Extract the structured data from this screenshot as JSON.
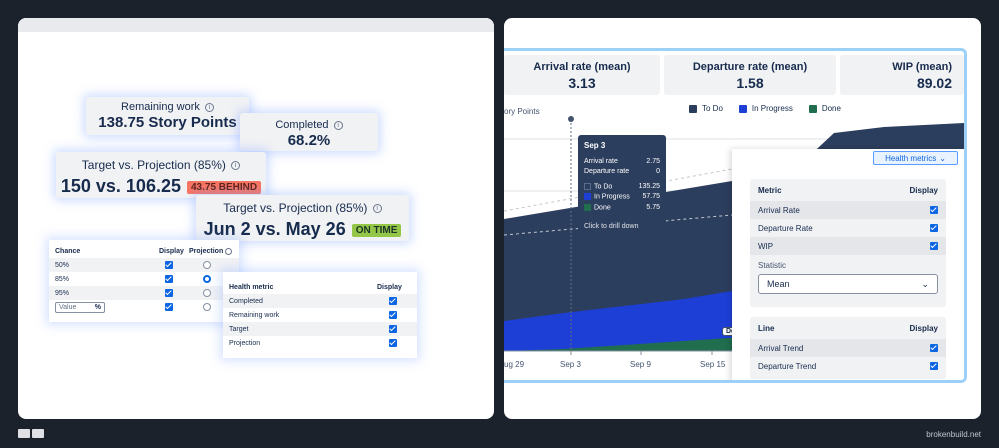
{
  "left": {
    "remaining": {
      "label": "Remaining work",
      "value": "138.75 Story Points"
    },
    "completed": {
      "label": "Completed",
      "value": "68.2%"
    },
    "target1": {
      "label": "Target vs. Projection (85%)",
      "value": "150 vs. 106.25",
      "badge": "43.75 BEHIND"
    },
    "target2": {
      "label": "Target vs. Projection (85%)",
      "value": "Jun 2 vs. May 26",
      "badge": "ON TIME"
    },
    "chance_table": {
      "headers": [
        "Chance",
        "Display",
        "Projection"
      ],
      "rows": [
        {
          "label": "50%",
          "display": true,
          "projection": false
        },
        {
          "label": "85%",
          "display": true,
          "projection": true
        },
        {
          "label": "95%",
          "display": true,
          "projection": false
        }
      ],
      "value_placeholder": "Value",
      "value_unit": "%"
    },
    "health_table": {
      "headers": [
        "Health metric",
        "Display"
      ],
      "rows": [
        "Completed",
        "Remaining work",
        "Target",
        "Projection"
      ]
    }
  },
  "right": {
    "kpis": [
      {
        "title": "Arrival rate (mean)",
        "value": "3.13"
      },
      {
        "title": "Departure rate (mean)",
        "value": "1.58"
      },
      {
        "title": "WIP (mean)",
        "value": "89.02"
      }
    ],
    "ylabel": "ory Points",
    "legend": [
      {
        "label": "To Do",
        "color": "#2c3e5d"
      },
      {
        "label": "In Progress",
        "color": "#1d3fd6"
      },
      {
        "label": "Done",
        "color": "#216e4e"
      }
    ],
    "xticks": [
      "ug 29",
      "Sep 3",
      "Sep 9",
      "Sep 15"
    ],
    "partial_label": "De",
    "tooltip": {
      "date": "Sep 3",
      "arrival_label": "Arrival rate",
      "arrival": "2.75",
      "departure_label": "Departure rate",
      "departure": "0",
      "todo_label": "To Do",
      "todo": "135.25",
      "inprog_label": "In Progress",
      "inprog": "57.75",
      "done_label": "Done",
      "done": "5.75",
      "footer": "Click to drill down"
    },
    "settings": {
      "button": "Health metrics",
      "metric_headers": [
        "Metric",
        "Display"
      ],
      "metrics": [
        "Arrival Rate",
        "Departure Rate",
        "WIP"
      ],
      "statistic_label": "Statistic",
      "statistic_value": "Mean",
      "line_headers": [
        "Line",
        "Display"
      ],
      "lines": [
        "Arrival Trend",
        "Departure Trend"
      ]
    }
  },
  "footer": {
    "brand": "brokenbuild.net"
  }
}
